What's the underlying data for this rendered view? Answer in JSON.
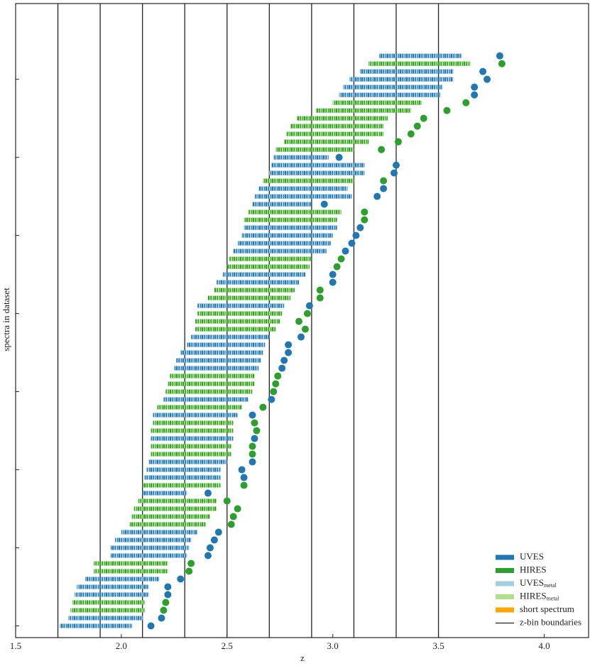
{
  "chart_data": {
    "type": "range-bar",
    "xlabel": "z",
    "ylabel": "spectra in dataset",
    "xlim": [
      1.5,
      4.21
    ],
    "ylim": [
      -1.5,
      79.7
    ],
    "xticks": [
      1.5,
      {
        "value": 2,
        "label": "2.0"
      },
      2.5,
      {
        "value": 3,
        "label": "3.0"
      },
      3.5,
      {
        "value": 4,
        "label": "4.0"
      }
    ],
    "yticks": [
      0,
      10,
      20,
      30,
      40,
      50,
      60,
      70
    ],
    "zbin_boundaries": [
      1.7,
      1.9,
      2.1,
      2.3,
      2.5,
      2.7,
      2.9,
      3.1,
      3.3,
      3.5
    ],
    "zbin_label": "z-bin boundaries",
    "zbin_color": "#222222",
    "series": [
      {
        "name": "UVES",
        "color": "#1f77b4",
        "metal_color": "#a6cee3",
        "y": [
          0,
          1,
          4,
          5,
          6,
          9,
          10,
          11,
          12,
          17,
          19,
          20,
          21,
          24,
          27,
          29,
          33,
          34,
          35,
          36,
          37,
          41,
          44,
          45,
          48,
          49,
          50,
          51,
          54,
          55,
          56,
          58,
          59,
          60,
          68,
          69,
          70,
          71,
          73
        ],
        "z_start": [
          1.71,
          1.75,
          1.78,
          1.79,
          1.83,
          1.95,
          1.95,
          1.97,
          2.0,
          2.1,
          2.11,
          2.12,
          2.13,
          2.14,
          2.15,
          2.2,
          2.25,
          2.26,
          2.28,
          2.31,
          2.33,
          2.36,
          2.45,
          2.48,
          2.53,
          2.55,
          2.57,
          2.58,
          2.62,
          2.63,
          2.65,
          2.7,
          2.71,
          2.72,
          3.03,
          3.05,
          3.08,
          3.13,
          3.22
        ],
        "z_end": [
          2.05,
          2.1,
          2.13,
          2.13,
          2.18,
          2.31,
          2.32,
          2.33,
          2.36,
          2.31,
          2.47,
          2.47,
          2.5,
          2.53,
          2.55,
          2.6,
          2.65,
          2.66,
          2.67,
          2.68,
          2.7,
          2.77,
          2.84,
          2.87,
          2.97,
          2.99,
          3.0,
          3.02,
          2.9,
          3.09,
          3.07,
          3.15,
          3.15,
          2.98,
          3.51,
          3.52,
          3.57,
          3.57,
          3.61
        ],
        "z_qso": [
          2.14,
          2.19,
          2.22,
          2.22,
          2.28,
          2.41,
          2.42,
          2.44,
          2.46,
          2.41,
          2.58,
          2.57,
          2.62,
          2.63,
          2.62,
          2.71,
          2.76,
          2.77,
          2.79,
          2.79,
          2.85,
          2.89,
          3.0,
          3.0,
          3.06,
          3.09,
          3.11,
          3.13,
          2.96,
          3.21,
          3.24,
          3.29,
          3.3,
          3.03,
          3.67,
          3.67,
          3.73,
          3.71,
          3.79
        ]
      },
      {
        "name": "HIRES",
        "color": "#2ca02c",
        "metal_color": "#b2df8a",
        "y": [
          2,
          3,
          7,
          8,
          13,
          14,
          15,
          16,
          18,
          22,
          23,
          25,
          26,
          28,
          30,
          31,
          32,
          38,
          39,
          40,
          42,
          43,
          46,
          47,
          52,
          53,
          57,
          61,
          62,
          63,
          64,
          65,
          66,
          67,
          72
        ],
        "z_start": [
          1.76,
          1.77,
          1.87,
          1.87,
          2.04,
          2.05,
          2.06,
          2.08,
          2.1,
          2.14,
          2.14,
          2.14,
          2.15,
          2.17,
          2.21,
          2.22,
          2.23,
          2.35,
          2.35,
          2.36,
          2.41,
          2.44,
          2.5,
          2.51,
          2.58,
          2.6,
          2.67,
          2.73,
          2.77,
          2.78,
          2.8,
          2.83,
          2.92,
          3.0,
          3.17
        ],
        "z_end": [
          2.11,
          2.11,
          2.22,
          2.22,
          2.4,
          2.42,
          2.45,
          2.45,
          2.47,
          2.52,
          2.52,
          2.53,
          2.53,
          2.57,
          2.62,
          2.63,
          2.63,
          2.73,
          2.75,
          2.76,
          2.8,
          2.82,
          2.89,
          2.9,
          3.02,
          3.04,
          3.1,
          3.1,
          3.17,
          3.24,
          3.24,
          3.26,
          3.37,
          3.42,
          3.65
        ],
        "z_qso": [
          2.2,
          2.21,
          2.32,
          2.33,
          2.52,
          2.53,
          2.55,
          2.5,
          2.58,
          2.62,
          2.62,
          2.64,
          2.63,
          2.67,
          2.72,
          2.73,
          2.74,
          2.87,
          2.84,
          2.88,
          2.94,
          2.94,
          3.02,
          3.04,
          3.15,
          3.15,
          3.24,
          3.23,
          3.31,
          3.37,
          3.4,
          3.43,
          3.54,
          3.63,
          3.8
        ]
      }
    ],
    "legend": {
      "corner": "lower right",
      "metal_entries": [
        {
          "name": "UVES",
          "subscript": "metal",
          "color": "#a6cee3"
        },
        {
          "name": "HIRES",
          "subscript": "metal",
          "color": "#b2df8a"
        }
      ],
      "short_label": "short spectrum",
      "short_color": "#ffa500"
    }
  }
}
